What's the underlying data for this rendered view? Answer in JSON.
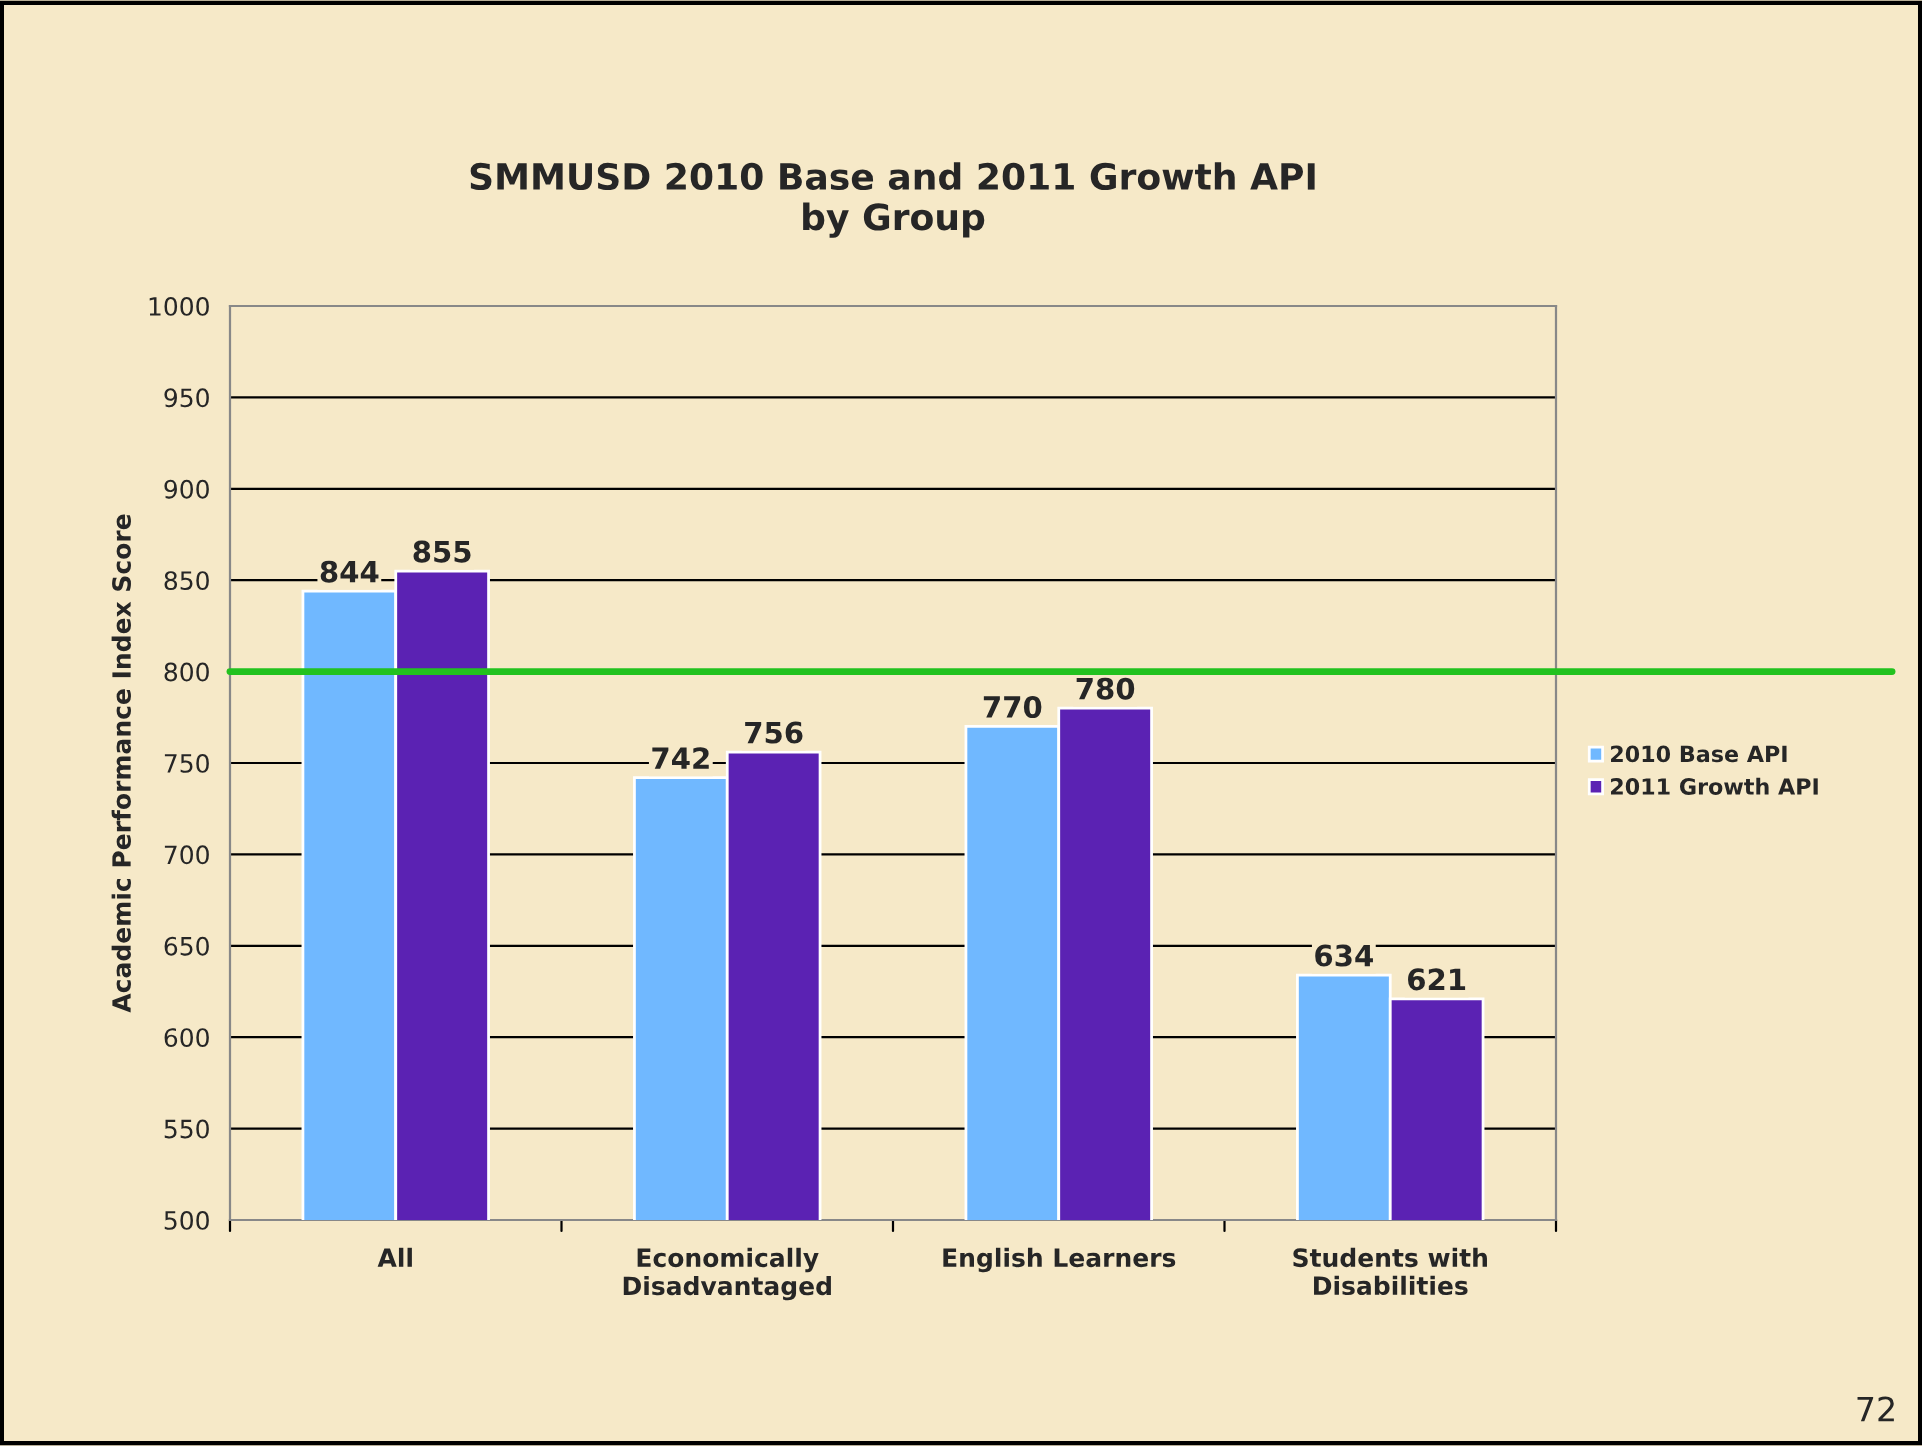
{
  "chart_data": {
    "type": "bar",
    "title": "SMMUSD 2010 Base and 2011 Growth API\nby Group",
    "ylabel": "Academic Performance Index Score",
    "categories": [
      "All",
      "Economically\nDisadvantaged",
      "English Learners",
      "Students with\nDisabilities"
    ],
    "series": [
      {
        "name": "2010 Base API",
        "color": "#70b8ff",
        "values": [
          844,
          742,
          770,
          634
        ]
      },
      {
        "name": "2011 Growth API",
        "color": "#5b22b3",
        "values": [
          855,
          756,
          780,
          621
        ]
      }
    ],
    "ylim": [
      500,
      1000
    ],
    "yticks": [
      500,
      550,
      600,
      650,
      700,
      750,
      800,
      850,
      900,
      950,
      1000
    ],
    "grid": "y",
    "legend": "right",
    "data_labels": true,
    "ref_lines": [
      {
        "axis": "y",
        "value": 800,
        "color": "#22c21f"
      }
    ],
    "annotations": [
      "72"
    ]
  }
}
